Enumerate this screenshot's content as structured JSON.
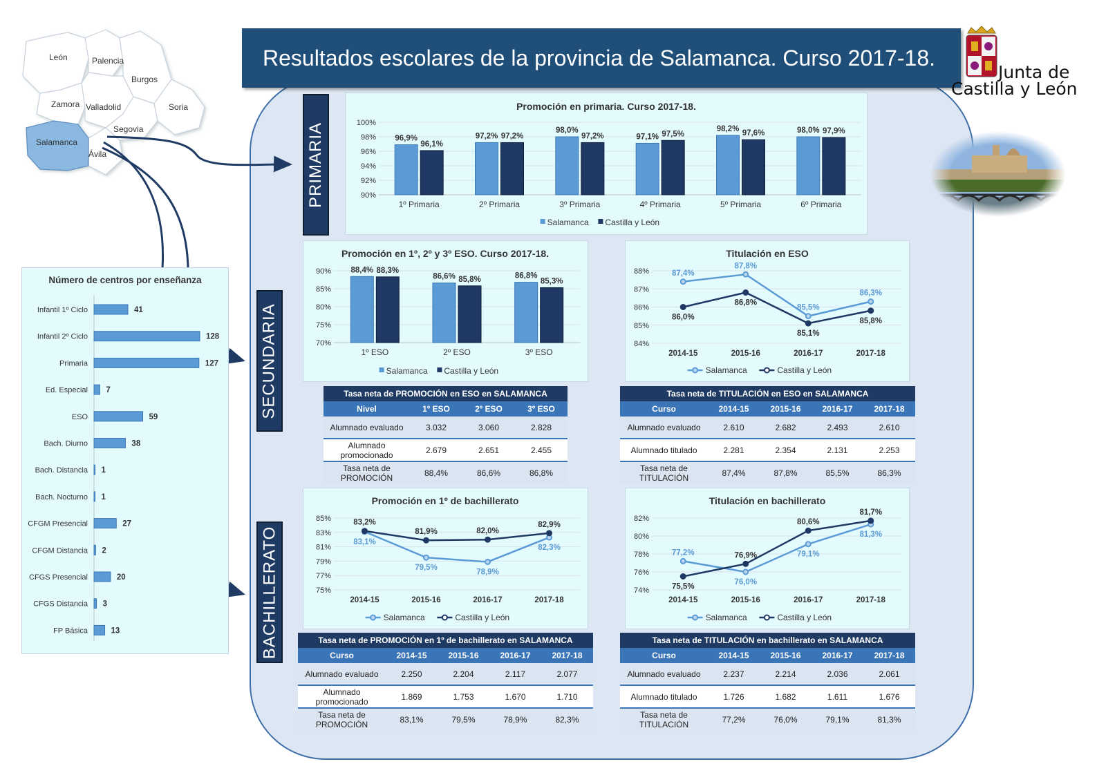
{
  "header": {
    "title": "Resultados escolares de la provincia de Salamanca. Curso 2017-18.",
    "logo_line1": "Junta de",
    "logo_line2": "Castilla y León"
  },
  "map": {
    "provinces": [
      "León",
      "Palencia",
      "Burgos",
      "Zamora",
      "Valladolid",
      "Soria",
      "Segovia",
      "Salamanca",
      "Ávila"
    ],
    "highlight": "Salamanca"
  },
  "sections": {
    "primaria": "PRIMARIA",
    "secundaria": "SECUNDARIA",
    "bachillerato": "BACHILLERATO"
  },
  "colors": {
    "salamanca": "#5b9bd5",
    "castilla": "#1f3864",
    "title_bar": "#1f4e79",
    "panel": "#dde6f3",
    "chart_bg": "#e4fbfd"
  },
  "chart_data": [
    {
      "id": "primaria",
      "type": "bar",
      "title": "Promoción en primaria. Curso 2017-18.",
      "categories": [
        "1º Primaria",
        "2º Primaria",
        "3º Primaria",
        "4º Primaria",
        "5º Primaria",
        "6º Primaria"
      ],
      "series": [
        {
          "name": "Salamanca",
          "values": [
            96.9,
            97.2,
            98.0,
            97.1,
            98.2,
            98.0
          ],
          "labels": [
            "96,9%",
            "97,2%",
            "98,0%",
            "97,1%",
            "98,2%",
            "98,0%"
          ]
        },
        {
          "name": "Castilla y León",
          "values": [
            96.1,
            97.2,
            97.2,
            97.5,
            97.6,
            97.9
          ],
          "labels": [
            "96,1%",
            "97,2%",
            "97,2%",
            "97,5%",
            "97,6%",
            "97,9%"
          ]
        }
      ],
      "ylim": [
        90,
        100
      ],
      "yticks": [
        "90%",
        "92%",
        "94%",
        "96%",
        "98%",
        "100%"
      ],
      "legend": "bottom"
    },
    {
      "id": "eso-promocion",
      "type": "bar",
      "title": "Promoción en 1º, 2º y 3º ESO. Curso 2017-18.",
      "categories": [
        "1º ESO",
        "2º ESO",
        "3º ESO"
      ],
      "series": [
        {
          "name": "Salamanca",
          "values": [
            88.4,
            86.6,
            86.8
          ],
          "labels": [
            "88,4%",
            "86,6%",
            "86,8%"
          ]
        },
        {
          "name": "Castilla y León",
          "values": [
            88.3,
            85.8,
            85.3
          ],
          "labels": [
            "88,3%",
            "85,8%",
            "85,3%"
          ]
        }
      ],
      "ylim": [
        70,
        90
      ],
      "yticks": [
        "70%",
        "75%",
        "80%",
        "85%",
        "90%"
      ],
      "legend": "bottom"
    },
    {
      "id": "eso-titulacion",
      "type": "line",
      "title": "Titulación en ESO",
      "categories": [
        "2014-15",
        "2015-16",
        "2016-17",
        "2017-18"
      ],
      "series": [
        {
          "name": "Salamanca",
          "values": [
            87.4,
            87.8,
            85.5,
            86.3
          ],
          "labels": [
            "87,4%",
            "87,8%",
            "85,5%",
            "86,3%"
          ]
        },
        {
          "name": "Castilla y León",
          "values": [
            86.0,
            86.8,
            85.1,
            85.8
          ],
          "labels": [
            "86,0%",
            "86,8%",
            "85,1%",
            "85,8%"
          ]
        }
      ],
      "ylim": [
        84,
        88
      ],
      "yticks": [
        "84%",
        "85%",
        "86%",
        "87%",
        "88%"
      ],
      "legend": "bottom"
    },
    {
      "id": "bach-promocion",
      "type": "line",
      "title": "Promoción en 1º de bachillerato",
      "categories": [
        "2014-15",
        "2015-16",
        "2016-17",
        "2017-18"
      ],
      "series": [
        {
          "name": "Salamanca",
          "values": [
            83.1,
            79.5,
            78.9,
            82.3
          ],
          "labels": [
            "83,1%",
            "79,5%",
            "78,9%",
            "82,3%"
          ]
        },
        {
          "name": "Castilla y León",
          "values": [
            83.2,
            81.9,
            82.0,
            82.9
          ],
          "labels": [
            "83,2%",
            "81,9%",
            "82,0%",
            "82,9%"
          ]
        }
      ],
      "ylim": [
        75,
        85
      ],
      "yticks": [
        "75%",
        "77%",
        "79%",
        "81%",
        "83%",
        "85%"
      ],
      "legend": "bottom"
    },
    {
      "id": "bach-titulacion",
      "type": "line",
      "title": "Titulación en bachillerato",
      "categories": [
        "2014-15",
        "2015-16",
        "2016-17",
        "2017-18"
      ],
      "series": [
        {
          "name": "Salamanca",
          "values": [
            77.2,
            76.0,
            79.1,
            81.3
          ],
          "labels": [
            "77,2%",
            "76,0%",
            "79,1%",
            "81,3%"
          ]
        },
        {
          "name": "Castilla y León",
          "values": [
            75.5,
            76.9,
            80.6,
            81.7
          ],
          "labels": [
            "75,5%",
            "76,9%",
            "80,6%",
            "81,7%"
          ]
        }
      ],
      "ylim": [
        74,
        82
      ],
      "yticks": [
        "74%",
        "76%",
        "78%",
        "80%",
        "82%"
      ],
      "legend": "bottom"
    },
    {
      "id": "centros",
      "type": "bar",
      "orientation": "horizontal",
      "title": "Número de centros por enseñanza",
      "categories": [
        "Infantil 1º Ciclo",
        "Infantil 2º Ciclo",
        "Primaria",
        "Ed. Especial",
        "ESO",
        "Bach. Diurno",
        "Bach. Distancia",
        "Bach. Nocturno",
        "CFGM Presencial",
        "CFGM Distancia",
        "CFGS Presencial",
        "CFGS Distancia",
        "FP Básica"
      ],
      "values": [
        41,
        128,
        127,
        7,
        59,
        38,
        1,
        1,
        27,
        2,
        20,
        3,
        13
      ],
      "labels": [
        "41",
        "128",
        "127",
        "7",
        "59",
        "38",
        "1",
        "1",
        "27",
        "2",
        "20",
        "3",
        "13"
      ]
    }
  ],
  "tables": {
    "eso_promocion": {
      "caption": "Tasa neta de PROMOCIÓN en ESO en SALAMANCA",
      "headers": [
        "Nivel",
        "1º ESO",
        "2º ESO",
        "3º ESO"
      ],
      "rows": [
        [
          "Alumnado evaluado",
          "3.032",
          "3.060",
          "2.828"
        ],
        [
          "Alumnado promocionado",
          "2.679",
          "2.651",
          "2.455"
        ],
        [
          "Tasa neta de PROMOCIÓN",
          "88,4%",
          "86,6%",
          "86,8%"
        ]
      ]
    },
    "eso_titulacion": {
      "caption": "Tasa neta de TITULACIÓN en ESO en SALAMANCA",
      "headers": [
        "Curso",
        "2014-15",
        "2015-16",
        "2016-17",
        "2017-18"
      ],
      "rows": [
        [
          "Alumnado evaluado",
          "2.610",
          "2.682",
          "2.493",
          "2.610"
        ],
        [
          "Alumnado titulado",
          "2.281",
          "2.354",
          "2.131",
          "2.253"
        ],
        [
          "Tasa neta de TITULACIÓN",
          "87,4%",
          "87,8%",
          "85,5%",
          "86,3%"
        ]
      ]
    },
    "bach_promocion": {
      "caption": "Tasa neta de PROMOCIÓN en 1º de bachillerato en SALAMANCA",
      "headers": [
        "Curso",
        "2014-15",
        "2015-16",
        "2016-17",
        "2017-18"
      ],
      "rows": [
        [
          "Alumnado evaluado",
          "2.250",
          "2.204",
          "2.117",
          "2.077"
        ],
        [
          "Alumnado promocionado",
          "1.869",
          "1.753",
          "1.670",
          "1.710"
        ],
        [
          "Tasa neta de PROMOCIÓN",
          "83,1%",
          "79,5%",
          "78,9%",
          "82,3%"
        ]
      ]
    },
    "bach_titulacion": {
      "caption": "Tasa neta de TITULACIÓN en bachillerato en SALAMANCA",
      "headers": [
        "Curso",
        "2014-15",
        "2015-16",
        "2016-17",
        "2017-18"
      ],
      "rows": [
        [
          "Alumnado evaluado",
          "2.237",
          "2.214",
          "2.036",
          "2.061"
        ],
        [
          "Alumnado titulado",
          "1.726",
          "1.682",
          "1.611",
          "1.676"
        ],
        [
          "Tasa neta de TITULACIÓN",
          "77,2%",
          "76,0%",
          "79,1%",
          "81,3%"
        ]
      ]
    }
  }
}
